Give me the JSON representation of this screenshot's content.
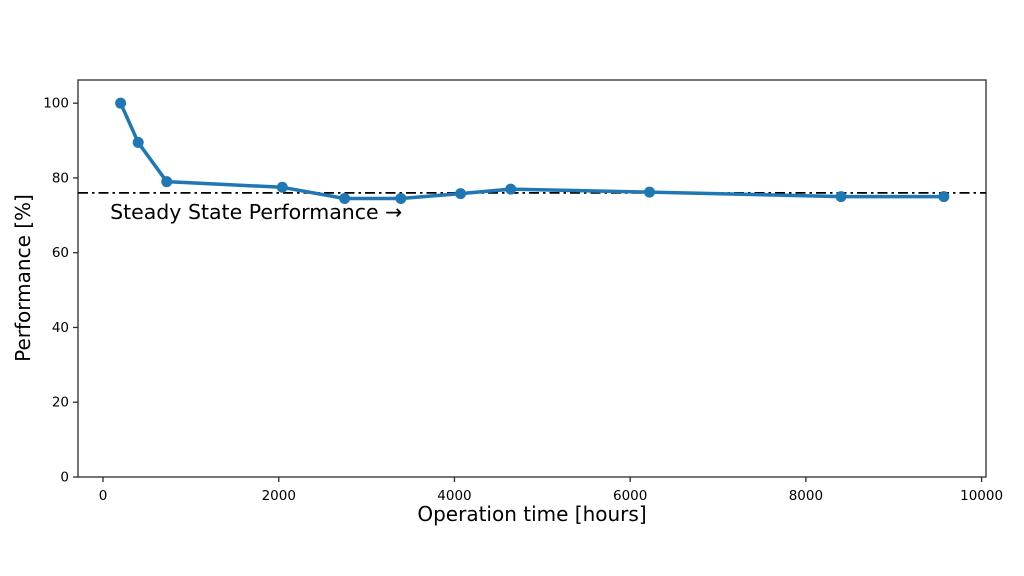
{
  "chart_data": {
    "type": "line",
    "title": "",
    "xlabel": "Operation time [hours]",
    "ylabel": "Performance [%]",
    "series": [
      {
        "name": "Performance",
        "x": [
          200,
          400,
          725,
          2040,
          2750,
          3390,
          4070,
          4640,
          6220,
          8400,
          9570
        ],
        "y": [
          100,
          89.5,
          79,
          77.5,
          74.5,
          74.5,
          75.8,
          77,
          76.2,
          75,
          75
        ],
        "color": "#1f77b4",
        "marker": "circle",
        "marker_radius": 5.5
      }
    ],
    "x_ticks": [
      0,
      2000,
      4000,
      6000,
      8000,
      10000
    ],
    "y_ticks": [
      0,
      20,
      40,
      60,
      80,
      100
    ],
    "xlim": [
      -285,
      10050
    ],
    "ylim": [
      0,
      106.2
    ],
    "grid": false,
    "legend": "none",
    "reference_line": {
      "value": 76,
      "orientation": "horizontal",
      "style": "dash-dot",
      "color": "#000000"
    },
    "annotation": {
      "text": "Steady State Performance →",
      "x": 80,
      "y": 69
    },
    "colors": {
      "background": "#ffffff",
      "spine": "#2b2b2b",
      "line": "#1f77b4",
      "reference": "#000000"
    }
  }
}
